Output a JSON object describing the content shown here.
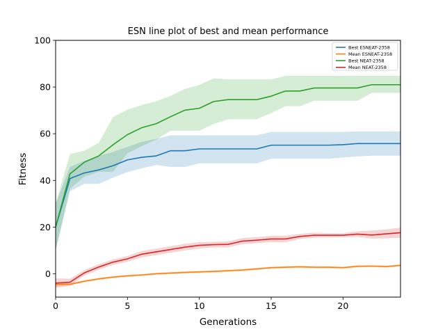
{
  "chart_data": {
    "type": "line",
    "title": "ESN line plot of best and mean performance",
    "xlabel": "Generations",
    "ylabel": "Fitness",
    "xlim": [
      0,
      24
    ],
    "ylim": [
      -10,
      100
    ],
    "x_ticks": [
      0,
      5,
      10,
      15,
      20
    ],
    "y_ticks": [
      0,
      20,
      40,
      60,
      80,
      100
    ],
    "grid": false,
    "legend_position": "top-right",
    "x": [
      0,
      1,
      2,
      3,
      4,
      5,
      6,
      7,
      8,
      9,
      10,
      11,
      12,
      13,
      14,
      15,
      16,
      17,
      18,
      19,
      20,
      21,
      22,
      23,
      24
    ],
    "series": [
      {
        "name": "Best ESNEAT-2358",
        "color": "#1f77b4",
        "values": [
          20,
          40.8,
          43.2,
          44.5,
          46.3,
          48.8,
          49.9,
          50.5,
          52.7,
          52.7,
          53.5,
          53.5,
          53.5,
          53.5,
          53.5,
          55.1,
          55.1,
          55.1,
          55.1,
          55.1,
          55.3,
          55.8,
          55.8,
          55.8,
          55.8
        ],
        "lower": [
          10,
          35.4,
          38.5,
          38.5,
          41.2,
          43.6,
          45.2,
          46.6,
          45.8,
          45.8,
          47.3,
          47.3,
          47.3,
          47.3,
          47.3,
          49.3,
          49.3,
          49.3,
          49.3,
          49.3,
          49.8,
          50.3,
          50.6,
          50.6,
          50.6
        ],
        "upper": [
          30,
          45.8,
          48.4,
          50.5,
          52.2,
          54.4,
          56.5,
          57.8,
          59.3,
          59.3,
          59.3,
          59.3,
          59.3,
          59.3,
          59.3,
          60.8,
          60.8,
          60.8,
          60.8,
          60.8,
          60.8,
          61,
          61,
          61,
          61
        ]
      },
      {
        "name": "Mean ESNEAT-2358",
        "color": "#ff7f0e",
        "values": [
          -4.5,
          -4.5,
          -3.2,
          -2.2,
          -1.4,
          -0.9,
          -0.5,
          0,
          0.3,
          0.6,
          0.8,
          1,
          1.3,
          1.6,
          2.1,
          2.6,
          2.8,
          3,
          2.8,
          2.8,
          2.6,
          3.2,
          3.3,
          3.1,
          3.6
        ],
        "lower": [
          -5.5,
          -5,
          -3.7,
          -2.7,
          -1.9,
          -1.4,
          -1,
          -0.5,
          -0.2,
          0.1,
          0.3,
          0.5,
          0.8,
          1.1,
          1.6,
          2.1,
          2.3,
          2.5,
          2.3,
          2.3,
          2.1,
          2.7,
          2.8,
          2.6,
          3.1
        ],
        "upper": [
          -3.5,
          -4,
          -2.7,
          -1.7,
          -0.9,
          -0.4,
          0,
          0.5,
          0.8,
          1.1,
          1.3,
          1.5,
          1.8,
          2.1,
          2.6,
          3.1,
          3.3,
          3.5,
          3.3,
          3.3,
          3.1,
          3.7,
          3.8,
          3.6,
          4.1
        ]
      },
      {
        "name": "Best NEAT-2358",
        "color": "#2ca02c",
        "values": [
          20,
          42.8,
          47.8,
          50.5,
          55.3,
          59.6,
          62.6,
          64.3,
          67.3,
          70.1,
          70.9,
          73.8,
          74.6,
          74.6,
          74.6,
          76.1,
          78.3,
          78.3,
          79.6,
          79.6,
          79.6,
          79.6,
          81,
          81,
          81
        ],
        "lower": [
          10,
          36.4,
          41.6,
          43.7,
          43.7,
          51.6,
          54.7,
          57.5,
          61.3,
          61.3,
          61.3,
          64.2,
          66.2,
          66.2,
          66.2,
          68.9,
          71.8,
          71.8,
          74.1,
          74.1,
          74.1,
          74.1,
          77.5,
          77.5,
          77.5
        ],
        "upper": [
          30,
          51.3,
          52.7,
          56.1,
          67.2,
          70.3,
          72.3,
          73.9,
          76.2,
          79.2,
          80.9,
          83.7,
          83.3,
          83.3,
          83.3,
          83.3,
          84.8,
          84.8,
          84.8,
          84.8,
          84.8,
          84.8,
          84.8,
          84.8,
          84.8
        ]
      },
      {
        "name": "Mean NEAT-2358",
        "color": "#d62728",
        "values": [
          -4,
          -3.6,
          0.4,
          2.9,
          5,
          6.4,
          8.4,
          9.4,
          10.4,
          11.4,
          12.2,
          12.5,
          12.6,
          14,
          14.4,
          14.9,
          14.9,
          16,
          16.5,
          16.5,
          16.5,
          17,
          16.6,
          17.1,
          17.6
        ],
        "lower": [
          -6,
          -5.1,
          -0.8,
          1.7,
          3.8,
          5.2,
          7,
          8,
          9,
          10,
          10.8,
          11.3,
          11.3,
          12.7,
          13.1,
          13.5,
          13.5,
          14.9,
          15.4,
          15.6,
          15.6,
          15.8,
          15.1,
          15.2,
          15.4
        ],
        "upper": [
          -2,
          -2.1,
          1.6,
          4.1,
          6.2,
          7.6,
          9.8,
          10.8,
          11.8,
          12.8,
          13.6,
          13.7,
          13.9,
          15.3,
          15.7,
          16.3,
          16.3,
          17.1,
          17.6,
          17.4,
          17.4,
          18.2,
          18.5,
          19,
          19.8
        ]
      }
    ]
  }
}
